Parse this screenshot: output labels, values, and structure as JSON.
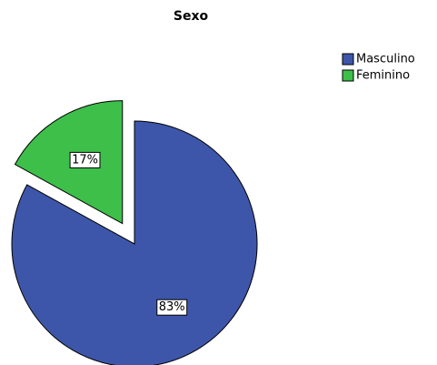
{
  "chart_data": {
    "type": "pie",
    "title": "Sexo",
    "categories": [
      "Masculino",
      "Feminino"
    ],
    "values": [
      83,
      17
    ],
    "value_labels": [
      "83%",
      "17%"
    ],
    "colors": [
      "#3d56a9",
      "#3dbf4a"
    ],
    "exploded": [
      false,
      true
    ],
    "legend": "top-right"
  }
}
